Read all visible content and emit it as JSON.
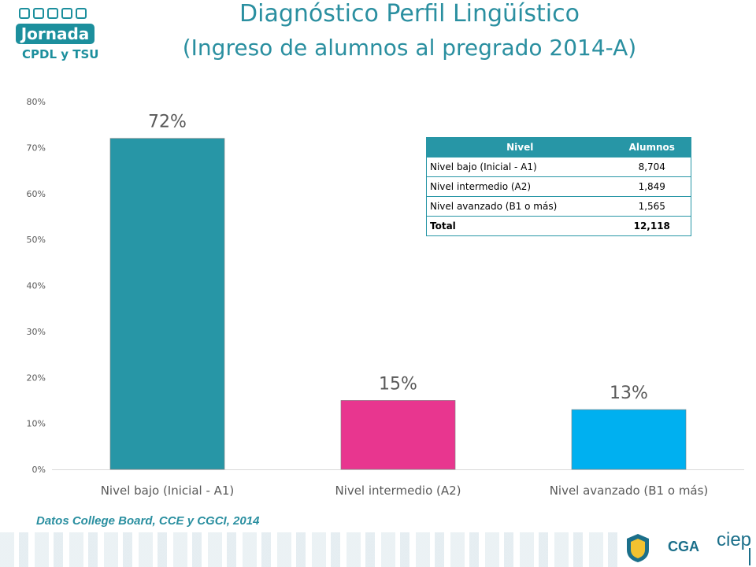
{
  "header": {
    "logo_text": "Jornada",
    "logo_sub": "CPDL y TSU",
    "title_line1": "Diagnóstico Perfil Lingüístico",
    "title_line2": "(Ingreso de alumnos al pregrado 2014-A)"
  },
  "chart_data": {
    "type": "bar",
    "categories": [
      "Nivel bajo (Inicial - A1)",
      "Nivel intermedio (A2)",
      "Nivel avanzado (B1 o más)"
    ],
    "values": [
      72,
      15,
      13
    ],
    "data_labels": [
      "72%",
      "15%",
      "13%"
    ],
    "colors": [
      "#2796a6",
      "#e8368f",
      "#00b0f0"
    ],
    "ylim": [
      0,
      80
    ],
    "yticks": [
      0,
      10,
      20,
      30,
      40,
      50,
      60,
      70,
      80
    ],
    "ytick_labels": [
      "0%",
      "10%",
      "20%",
      "30%",
      "40%",
      "50%",
      "60%",
      "70%",
      "80%"
    ],
    "grid": false,
    "legend": false
  },
  "table": {
    "headers": [
      "Nivel",
      "Alumnos"
    ],
    "rows": [
      {
        "nivel": "Nivel bajo (Inicial - A1)",
        "alumnos": "8,704"
      },
      {
        "nivel": "Nivel intermedio (A2)",
        "alumnos": "1,849"
      },
      {
        "nivel": "Nivel avanzado (B1 o más)",
        "alumnos": "1,565"
      }
    ],
    "total_label": "Total",
    "total_value": "12,118"
  },
  "source": "Datos College Board, CCE y CGCI, 2014",
  "footer": {
    "cga": "CGA",
    "ciep": "ciep"
  },
  "colors": {
    "accent": "#2a8fa0",
    "table_header": "#2796a6"
  }
}
